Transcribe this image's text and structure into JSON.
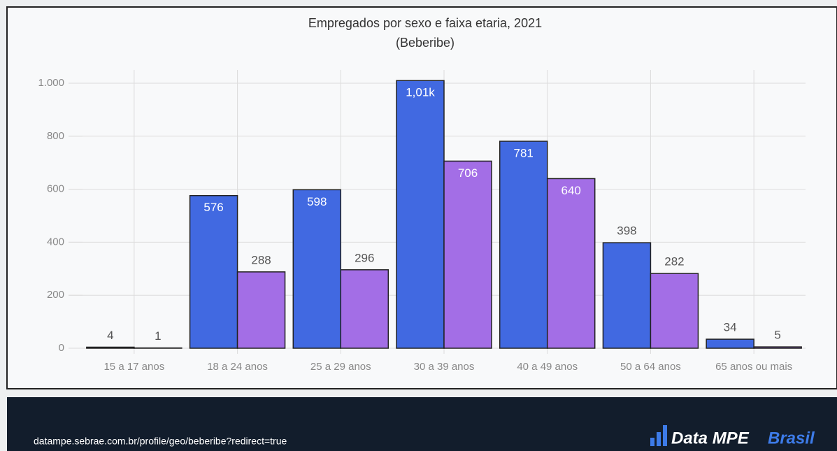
{
  "chart_data": {
    "type": "bar",
    "title": "Empregados por sexo e faixa etaria, 2021",
    "subtitle": "(Beberibe)",
    "categories": [
      "15 a 17 anos",
      "18 a 24 anos",
      "25 a 29 anos",
      "30 a 39 anos",
      "40 a 49 anos",
      "50 a 64 anos",
      "65 anos ou mais"
    ],
    "series": [
      {
        "color": "#4169e1",
        "values": [
          4,
          576,
          598,
          1010,
          781,
          398,
          34
        ],
        "value_labels": [
          "4",
          "576",
          "598",
          "1,01k",
          "781",
          "398",
          "34"
        ]
      },
      {
        "color": "#a36ee6",
        "values": [
          1,
          288,
          296,
          706,
          640,
          282,
          5
        ]
      }
    ],
    "ylim": [
      0,
      1000
    ],
    "yticks": [
      0,
      200,
      400,
      600,
      800,
      {
        "value": 1000,
        "label": "1.000"
      }
    ],
    "grid": true
  },
  "footer": {
    "url": "datampe.sebrae.com.br/profile/geo/beberibe?redirect=true",
    "logo": "Data MPE",
    "logo_accent": "Brasil"
  }
}
